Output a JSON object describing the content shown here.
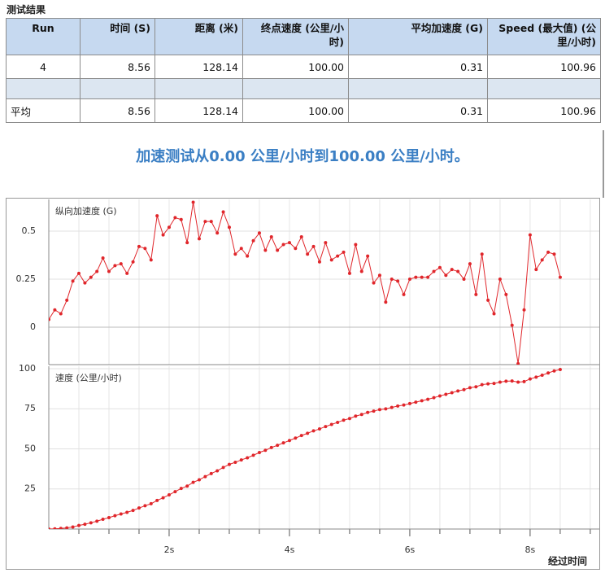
{
  "table": {
    "title": "测试结果",
    "columns": [
      "Run",
      "时间 (S)",
      "距离 (米)",
      "终点速度 (公里/小时)",
      "平均加速度 (G)",
      "Speed (最大值) (公里/小时)"
    ],
    "rows": [
      [
        "4",
        "8.56",
        "128.14",
        "100.00",
        "0.31",
        "100.96"
      ],
      [],
      [
        "平均",
        "8.56",
        "128.14",
        "100.00",
        "0.31",
        "100.96"
      ]
    ]
  },
  "summary": "加速测试从0.00 公里/小时到100.00 公里/小时。",
  "chart_data": [
    {
      "type": "line",
      "title": "纵向加速度 (G)",
      "color": "#e0262b",
      "x": [
        0,
        0.1,
        0.2,
        0.3,
        0.4,
        0.5,
        0.6,
        0.7,
        0.8,
        0.9,
        1,
        1.1,
        1.2,
        1.3,
        1.4,
        1.5,
        1.6,
        1.7,
        1.8,
        1.9,
        2,
        2.1,
        2.2,
        2.3,
        2.4,
        2.5,
        2.6,
        2.7,
        2.8,
        2.9,
        3,
        3.1,
        3.2,
        3.3,
        3.4,
        3.5,
        3.6,
        3.7,
        3.8,
        3.9,
        4,
        4.1,
        4.2,
        4.3,
        4.4,
        4.5,
        4.6,
        4.7,
        4.8,
        4.9,
        5,
        5.1,
        5.2,
        5.3,
        5.4,
        5.5,
        5.6,
        5.7,
        5.8,
        5.9,
        6,
        6.1,
        6.2,
        6.3,
        6.4,
        6.5,
        6.6,
        6.7,
        6.8,
        6.9,
        7,
        7.1,
        7.2,
        7.3,
        7.4,
        7.5,
        7.6,
        7.7,
        7.8,
        7.9,
        8,
        8.1,
        8.2,
        8.3,
        8.4,
        8.5
      ],
      "values": [
        0.04,
        0.09,
        0.07,
        0.14,
        0.24,
        0.28,
        0.23,
        0.26,
        0.29,
        0.36,
        0.29,
        0.32,
        0.33,
        0.28,
        0.34,
        0.42,
        0.41,
        0.35,
        0.58,
        0.48,
        0.52,
        0.57,
        0.56,
        0.44,
        0.65,
        0.46,
        0.55,
        0.55,
        0.49,
        0.6,
        0.52,
        0.38,
        0.41,
        0.37,
        0.45,
        0.49,
        0.4,
        0.47,
        0.4,
        0.43,
        0.44,
        0.41,
        0.47,
        0.38,
        0.42,
        0.34,
        0.44,
        0.35,
        0.37,
        0.39,
        0.28,
        0.43,
        0.29,
        0.37,
        0.23,
        0.27,
        0.13,
        0.25,
        0.24,
        0.17,
        0.25,
        0.26,
        0.26,
        0.26,
        0.29,
        0.31,
        0.27,
        0.3,
        0.29,
        0.25,
        0.33,
        0.17,
        0.38,
        0.14,
        0.07,
        0.25,
        0.17,
        0.01,
        -0.19,
        0.09,
        0.48,
        0.3,
        0.35,
        0.39,
        0.38,
        0.26
      ],
      "xlim": [
        0,
        9.15
      ],
      "xgrid": [
        0.5,
        1,
        1.5,
        2,
        2.5,
        3,
        3.5,
        4,
        4.5,
        5,
        5.5,
        6,
        6.5,
        7,
        7.5,
        8,
        8.5,
        9
      ],
      "ylim": [
        -0.195,
        0.665
      ],
      "yticks": [
        0,
        0.25,
        0.5
      ],
      "grid": true
    },
    {
      "type": "line",
      "title": "速度 (公里/小时)",
      "xlabel": "经过时间",
      "color": "#e0262b",
      "x": [
        0,
        0.1,
        0.2,
        0.3,
        0.4,
        0.5,
        0.6,
        0.7,
        0.8,
        0.9,
        1,
        1.1,
        1.2,
        1.3,
        1.4,
        1.5,
        1.6,
        1.7,
        1.8,
        1.9,
        2,
        2.1,
        2.2,
        2.3,
        2.4,
        2.5,
        2.6,
        2.7,
        2.8,
        2.9,
        3,
        3.1,
        3.2,
        3.3,
        3.4,
        3.5,
        3.6,
        3.7,
        3.8,
        3.9,
        4,
        4.1,
        4.2,
        4.3,
        4.4,
        4.5,
        4.6,
        4.7,
        4.8,
        4.9,
        5,
        5.1,
        5.2,
        5.3,
        5.4,
        5.5,
        5.6,
        5.7,
        5.8,
        5.9,
        6,
        6.1,
        6.2,
        6.3,
        6.4,
        6.5,
        6.6,
        6.7,
        6.8,
        6.9,
        7,
        7.1,
        7.2,
        7.3,
        7.4,
        7.5,
        7.6,
        7.7,
        7.8,
        7.9,
        8,
        8.1,
        8.2,
        8.3,
        8.4,
        8.5
      ],
      "values": [
        0,
        0.1,
        0.4,
        0.7,
        1.3,
        2.2,
        3,
        3.9,
        4.9,
        6.1,
        7.1,
        8.3,
        9.4,
        10.4,
        11.6,
        13.1,
        14.5,
        15.8,
        17.8,
        19.5,
        21.3,
        23.3,
        25.3,
        26.8,
        29.1,
        30.7,
        32.7,
        34.6,
        36.3,
        38.4,
        40.3,
        41.6,
        43.1,
        44.4,
        46,
        47.7,
        49.1,
        50.8,
        52.2,
        53.7,
        55.2,
        56.7,
        58.3,
        59.7,
        61.2,
        62.4,
        63.9,
        65.2,
        66.5,
        67.9,
        68.9,
        70.4,
        71.4,
        72.7,
        73.5,
        74.5,
        74.9,
        75.8,
        76.7,
        77.3,
        78.2,
        79.1,
        80,
        80.9,
        81.9,
        83,
        84,
        85,
        86.1,
        86.9,
        88.1,
        88.7,
        90,
        90.5,
        90.8,
        91.6,
        92.2,
        92.3,
        91.6,
        91.9,
        93.6,
        94.7,
        95.9,
        97.3,
        98.6,
        99.5
      ],
      "xlim": [
        0,
        9.15
      ],
      "xticks": [
        {
          "value": 2,
          "label": "2s"
        },
        {
          "value": 4,
          "label": "4s"
        },
        {
          "value": 6,
          "label": "6s"
        },
        {
          "value": 8,
          "label": "8s"
        }
      ],
      "xminorticks": [
        0.5,
        1,
        1.5,
        2.5,
        3,
        3.5,
        4.5,
        5,
        5.5,
        6.5,
        7,
        7.5,
        8.5,
        9
      ],
      "ylim": [
        0,
        101.5
      ],
      "yticks": [
        25,
        50,
        75,
        100
      ],
      "grid": true
    }
  ]
}
